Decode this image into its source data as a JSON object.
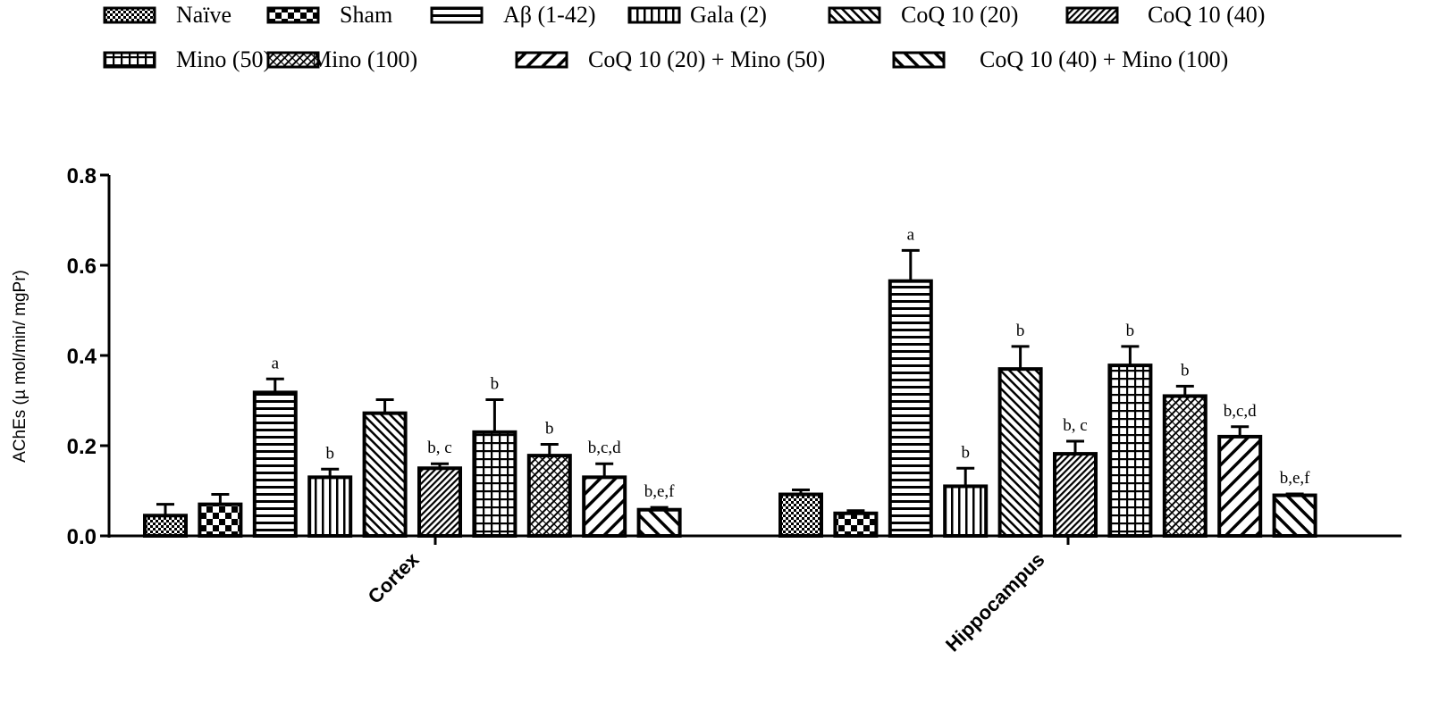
{
  "chart_data": {
    "type": "bar",
    "title": "",
    "xlabel": "",
    "ylabel": "AChEs (µ mol/min/ mgPr)",
    "ylim": [
      0,
      0.8
    ],
    "yticks": [
      "0.0",
      "0.2",
      "0.4",
      "0.6",
      "0.8"
    ],
    "grid": false,
    "legend_position": "top",
    "categories": [
      "Cortex",
      "Hippocampus"
    ],
    "series": [
      {
        "name": "Naïve",
        "values": [
          0.045,
          0.092
        ],
        "errors": [
          0.025,
          0.01
        ],
        "labels": [
          "",
          ""
        ],
        "pattern": "checker-fine"
      },
      {
        "name": "Sham",
        "values": [
          0.07,
          0.05
        ],
        "errors": [
          0.022,
          0.006
        ],
        "labels": [
          "",
          ""
        ],
        "pattern": "checker-coarse"
      },
      {
        "name": "Aβ (1-42)",
        "values": [
          0.318,
          0.565
        ],
        "errors": [
          0.03,
          0.068
        ],
        "labels": [
          "a",
          "a"
        ],
        "pattern": "horizontal"
      },
      {
        "name": "Gala (2)",
        "values": [
          0.13,
          0.11
        ],
        "errors": [
          0.018,
          0.04
        ],
        "labels": [
          "b",
          "b"
        ],
        "pattern": "vertical"
      },
      {
        "name": "CoQ 10 (20)",
        "values": [
          0.272,
          0.37
        ],
        "errors": [
          0.03,
          0.05
        ],
        "labels": [
          "",
          "b"
        ],
        "pattern": "diag-up"
      },
      {
        "name": "CoQ 10 (40)",
        "values": [
          0.15,
          0.182
        ],
        "errors": [
          0.01,
          0.028
        ],
        "labels": [
          "b, c",
          "b, c"
        ],
        "pattern": "diag-down-fine"
      },
      {
        "name": "Mino (50)",
        "values": [
          0.23,
          0.378
        ],
        "errors": [
          0.072,
          0.042
        ],
        "labels": [
          "b",
          "b"
        ],
        "pattern": "grid"
      },
      {
        "name": "Mino (100)",
        "values": [
          0.178,
          0.31
        ],
        "errors": [
          0.025,
          0.022
        ],
        "labels": [
          "b",
          "b"
        ],
        "pattern": "cross-diag"
      },
      {
        "name": "CoQ 10 (20) + Mino (50)",
        "values": [
          0.13,
          0.22
        ],
        "errors": [
          0.03,
          0.022
        ],
        "labels": [
          "b,c,d",
          "b,c,d"
        ],
        "pattern": "diag-down-wide"
      },
      {
        "name": "CoQ 10 (40) + Mino (100)",
        "values": [
          0.058,
          0.09
        ],
        "errors": [
          0.005,
          0.003
        ],
        "labels": [
          "b,e,f",
          "b,e,f"
        ],
        "pattern": "diag-up-wide"
      }
    ]
  }
}
